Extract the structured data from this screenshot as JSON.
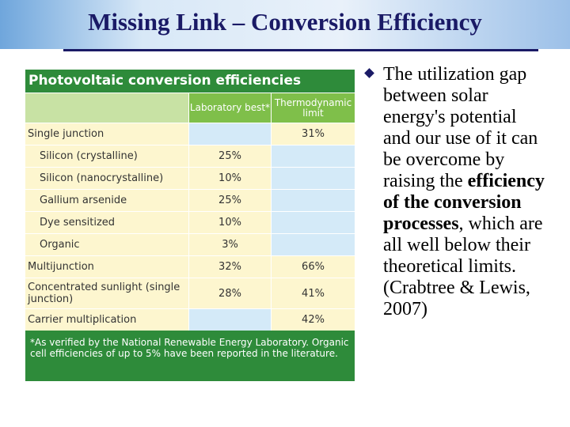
{
  "title": "Missing Link – Conversion Efficiency",
  "table": {
    "title": "Photovoltaic conversion efficiencies",
    "columns": [
      "Laboratory best*",
      "Thermodynamic limit"
    ],
    "rows": [
      {
        "label": "Single junction",
        "indent": false,
        "lab": null,
        "limit": "31%"
      },
      {
        "label": "Silicon (crystalline)",
        "indent": true,
        "lab": "25%",
        "limit": null
      },
      {
        "label": "Silicon (nanocrystalline)",
        "indent": true,
        "lab": "10%",
        "limit": null
      },
      {
        "label": "Gallium arsenide",
        "indent": true,
        "lab": "25%",
        "limit": null
      },
      {
        "label": "Dye sensitized",
        "indent": true,
        "lab": "10%",
        "limit": null
      },
      {
        "label": "Organic",
        "indent": true,
        "lab": "3%",
        "limit": null
      },
      {
        "label": "Multijunction",
        "indent": false,
        "lab": "32%",
        "limit": "66%"
      },
      {
        "label": "Concentrated sunlight (single junction)",
        "indent": false,
        "lab": "28%",
        "limit": "41%"
      },
      {
        "label": "Carrier multiplication",
        "indent": false,
        "lab": null,
        "limit": "42%"
      }
    ],
    "footnote": "*As verified by the National Renewable Energy Laboratory. Organic cell efficiencies of up to 5% have been reported in the literature."
  },
  "bullet": {
    "text_before": "The utilization gap between solar energy's potential and our use of it can be overcome by raising the",
    "bold": "efficiency of the conversion processes",
    "text_after": ", which are all well below their theoretical limits. (Crabtree & Lewis, 2007)"
  }
}
